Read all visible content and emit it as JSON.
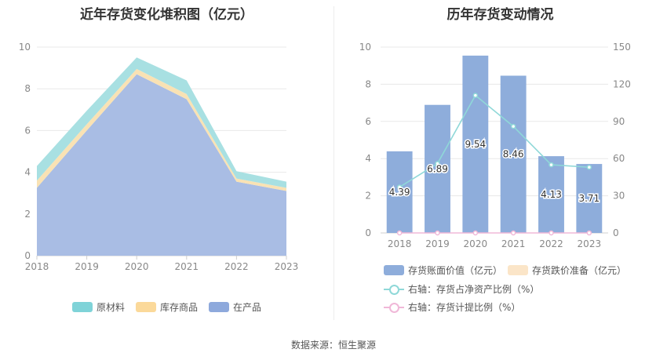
{
  "source_text": "数据来源：恒生聚源",
  "chart_data": [
    {
      "type": "area",
      "stacked": true,
      "title": "近年存货变化堆积图（亿元）",
      "x": [
        "2018",
        "2019",
        "2020",
        "2021",
        "2022",
        "2023"
      ],
      "ylim": [
        0,
        10
      ],
      "yticks": [
        "0",
        "2",
        "4",
        "6",
        "8",
        "10"
      ],
      "series": [
        {
          "name": "在产品",
          "color": "#a9bde4",
          "values": [
            3.25,
            6.0,
            8.7,
            7.5,
            3.55,
            3.1
          ]
        },
        {
          "name": "库存商品",
          "color": "#f9e2b4",
          "values": [
            0.35,
            0.3,
            0.25,
            0.25,
            0.15,
            0.15
          ]
        },
        {
          "name": "原材料",
          "color": "#a8e0e2",
          "values": [
            0.7,
            0.65,
            0.55,
            0.65,
            0.35,
            0.3
          ]
        }
      ],
      "legend_order": [
        "原材料",
        "库存商品",
        "在产品"
      ],
      "legend_colors": {
        "原材料": "#7fd3d8",
        "库存商品": "#fbd99a",
        "在产品": "#8ea9dc"
      },
      "legend_position": "bottom",
      "grid": true
    },
    {
      "type": "bar",
      "title": "历年存货变动情况",
      "x": [
        "2018",
        "2019",
        "2020",
        "2021",
        "2022",
        "2023"
      ],
      "ylim": [
        0,
        10
      ],
      "y2lim": [
        0,
        150
      ],
      "yticks": [
        "0",
        "2",
        "4",
        "6",
        "8",
        "10"
      ],
      "y2ticks": [
        "0",
        "30",
        "60",
        "90",
        "120",
        "150"
      ],
      "bar_series": [
        {
          "name": "存货账面价值（亿元）",
          "color": "#8eaddb",
          "values": [
            4.39,
            6.89,
            9.54,
            8.46,
            4.13,
            3.71
          ],
          "labels": [
            "4.39",
            "6.89",
            "9.54",
            "8.46",
            "4.13",
            "3.71"
          ]
        },
        {
          "name": "存货跌价准备（亿元）",
          "color": "#fbe5c8",
          "values": [
            0,
            0,
            0,
            0,
            0,
            0
          ]
        }
      ],
      "line_series": [
        {
          "name": "右轴：存货占净资产比例（%）",
          "color": "#8fd8d8",
          "axis": "right",
          "values": [
            37,
            56,
            111,
            86,
            55,
            53
          ]
        },
        {
          "name": "右轴：存货计提比例（%）",
          "color": "#f0b8d8",
          "axis": "right",
          "values": [
            0,
            0,
            0,
            0,
            0,
            0
          ]
        }
      ],
      "legend_position": "bottom",
      "grid": true
    }
  ]
}
